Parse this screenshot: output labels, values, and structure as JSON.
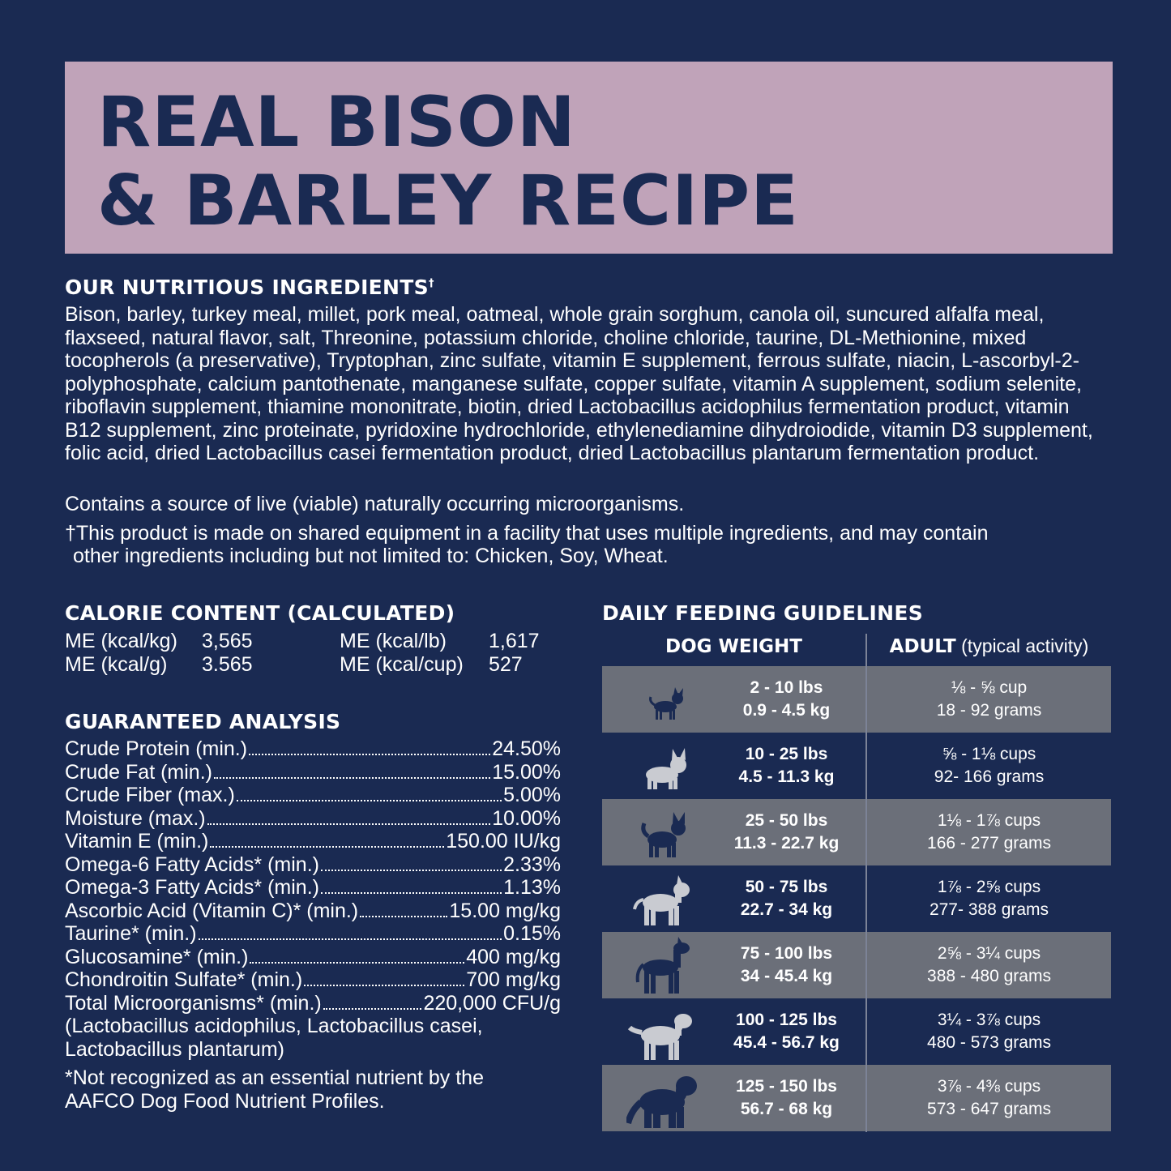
{
  "title": {
    "line1": "REAL BISON",
    "line2": "& BARLEY RECIPE"
  },
  "ingredients": {
    "heading": "OUR NUTRITIOUS INGREDIENTS",
    "heading_mark": "†",
    "text": "Bison, barley, turkey meal, millet, pork meal, oatmeal, whole grain sorghum, canola oil, suncured alfalfa meal, flaxseed, natural flavor, salt, Threonine, potassium chloride, choline chloride, taurine, DL-Methionine, mixed tocopherols (a preservative), Tryptophan, zinc sulfate, vitamin E supplement, ferrous sulfate, niacin, L-ascorbyl-2-polyphosphate, calcium pantothenate, manganese sulfate, copper sulfate, vitamin A supplement, sodium selenite, riboflavin supplement, thiamine mononitrate, biotin, dried Lactobacillus acidophilus fermentation product, vitamin B12 supplement, zinc proteinate, pyridoxine hydrochloride, ethylenediamine dihydroiodide, vitamin D3 supplement, folic acid, dried Lactobacillus casei fermentation product, dried Lactobacillus plantarum fermentation product.",
    "microorganisms": "Contains a source of live (viable) naturally occurring microorganisms.",
    "allergen_line1": "†This product is made on shared equipment in a facility that uses multiple ingredients, and may contain",
    "allergen_line2": "other ingredients including but not limited to: Chicken, Soy, Wheat."
  },
  "calories": {
    "heading": "CALORIE CONTENT (CALCULATED)",
    "kg_label": "ME (kcal/kg)",
    "kg_value": "3,565",
    "g_label": "ME (kcal/g)",
    "g_value": "3.565",
    "lb_label": "ME (kcal/lb)",
    "lb_value": "1,617",
    "cup_label": "ME (kcal/cup)",
    "cup_value": "527"
  },
  "analysis": {
    "heading": "GUARANTEED ANALYSIS",
    "rows": [
      {
        "label": "Crude Protein (min.)",
        "value": "24.50%"
      },
      {
        "label": "Crude Fat (min.)",
        "value": "15.00%"
      },
      {
        "label": "Crude Fiber (max.)",
        "value": "5.00%"
      },
      {
        "label": "Moisture (max.)",
        "value": "10.00%"
      },
      {
        "label": "Vitamin E (min.)",
        "value": "150.00 IU/kg"
      },
      {
        "label": "Omega-6 Fatty Acids* (min.)",
        "value": "2.33%"
      },
      {
        "label": "Omega-3 Fatty Acids* (min.)",
        "value": "1.13%"
      },
      {
        "label": "Ascorbic Acid (Vitamin C)* (min.)",
        "value": "15.00 mg/kg"
      },
      {
        "label": "Taurine* (min.)",
        "value": "0.15%"
      },
      {
        "label": "Glucosamine* (min.)",
        "value": "400 mg/kg"
      },
      {
        "label": "Chondroitin Sulfate* (min.)",
        "value": "700 mg/kg"
      },
      {
        "label": "Total Microorganisms* (min.)",
        "value": "220,000 CFU/g"
      }
    ],
    "strains_line1": "(Lactobacillus acidophilus, Lactobacillus casei,",
    "strains_line2": "Lactobacillus plantarum)",
    "footnote_line1": "*Not recognized as an essential nutrient by the",
    "footnote_line2": "AAFCO Dog Food Nutrient Profiles."
  },
  "feeding": {
    "heading": "DAILY FEEDING GUIDELINES",
    "col_weight": "DOG WEIGHT",
    "col_adult_bold": "ADULT",
    "col_adult_rest": " (typical activity)",
    "rows": [
      {
        "icon": "chihuahua-icon",
        "lbs": "2 - 10 lbs",
        "kg": "0.9 - 4.5 kg",
        "cups": "⅛ - ⅝ cup",
        "grams": "18 - 92 grams"
      },
      {
        "icon": "french-bulldog-icon",
        "lbs": "10 - 25 lbs",
        "kg": "4.5 - 11.3 kg",
        "cups": "⅝ - 1⅛ cups",
        "grams": "92- 166 grams"
      },
      {
        "icon": "terrier-icon",
        "lbs": "25 - 50 lbs",
        "kg": "11.3 - 22.7 kg",
        "cups": "1⅛ - 1⅞ cups",
        "grams": "166 - 277 grams"
      },
      {
        "icon": "pitbull-icon",
        "lbs": "50 - 75 lbs",
        "kg": "22.7 - 34 kg",
        "cups": "1⅞ - 2⅝ cups",
        "grams": "277- 388 grams"
      },
      {
        "icon": "great-dane-icon",
        "lbs": "75 - 100 lbs",
        "kg": "34 - 45.4 kg",
        "cups": "2⅝ - 3¼ cups",
        "grams": "388 - 480 grams"
      },
      {
        "icon": "retriever-icon",
        "lbs": "100 - 125 lbs",
        "kg": "45.4 - 56.7 kg",
        "cups": "3¼ - 3⅞ cups",
        "grams": "480 - 573 grams"
      },
      {
        "icon": "newfoundland-icon",
        "lbs": "125 - 150 lbs",
        "kg": "56.7 - 68 kg",
        "cups": "3⅞ - 4⅜ cups",
        "grams": "573 - 647 grams"
      }
    ]
  },
  "colors": {
    "background": "#1a2a52",
    "title_box": "#c0a3b9",
    "row_alt": "#6b6f79",
    "dog_light": "#c9cbd1",
    "dog_dark": "#1a2a52"
  }
}
